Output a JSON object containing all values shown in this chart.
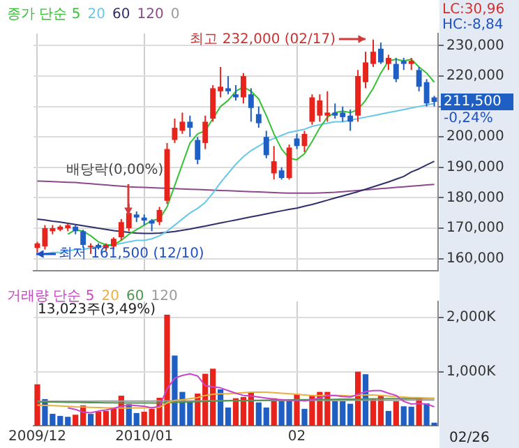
{
  "chart_data": [
    {
      "type": "candlestick",
      "legend_title": "종가 단순",
      "legend": "top left",
      "grid": true,
      "marker": "none",
      "tick_labels": "y",
      "categories": [
        "2009/12",
        null,
        null,
        null,
        null,
        null,
        null,
        null,
        null,
        null,
        null,
        null,
        null,
        null,
        "2010/01",
        null,
        null,
        null,
        null,
        null,
        null,
        null,
        null,
        null,
        null,
        null,
        null,
        null,
        null,
        null,
        null,
        null,
        null,
        null,
        "02",
        null,
        null,
        null,
        null,
        null,
        null,
        null,
        null,
        null,
        null,
        null,
        null,
        null,
        null,
        null,
        null,
        null,
        null
      ],
      "ylim": [
        156000,
        234000
      ],
      "yticks": [
        {
          "value": 160000,
          "label": "160,000"
        },
        {
          "value": 170000,
          "label": "170,000"
        },
        {
          "value": 180000,
          "label": "180,000"
        },
        {
          "value": 190000,
          "label": "190,000"
        },
        {
          "value": 200000,
          "label": "200,000"
        },
        {
          "value": 210000,
          "label": null
        },
        {
          "value": 220000,
          "label": "220,000"
        },
        {
          "value": 230000,
          "label": "230,000"
        }
      ],
      "ohlc": [
        [
          163500,
          165500,
          162000,
          165000
        ],
        [
          164000,
          171000,
          163000,
          170000
        ],
        [
          169000,
          171000,
          168000,
          170000
        ],
        [
          169500,
          171000,
          169000,
          170500
        ],
        [
          170000,
          171500,
          169000,
          171000
        ],
        [
          170500,
          171000,
          168000,
          169000
        ],
        [
          169000,
          169500,
          163500,
          164500
        ],
        [
          163800,
          165000,
          161500,
          164200
        ],
        [
          164500,
          165000,
          163000,
          163500
        ],
        [
          163500,
          165000,
          162500,
          164500
        ],
        [
          164000,
          167000,
          163000,
          166500
        ],
        [
          167000,
          173000,
          166000,
          172000
        ],
        [
          170000,
          178000,
          169000,
          175000
        ],
        [
          174500,
          175500,
          172000,
          173500
        ],
        [
          173500,
          174500,
          171000,
          172500
        ],
        [
          172500,
          173000,
          169000,
          171500
        ],
        [
          172000,
          177000,
          171000,
          176000
        ],
        [
          179000,
          198000,
          178000,
          196000
        ],
        [
          199000,
          206000,
          198000,
          203000
        ],
        [
          202000,
          208000,
          201000,
          205000
        ],
        [
          205000,
          207000,
          200000,
          203000
        ],
        [
          199000,
          200000,
          191000,
          192500
        ],
        [
          198000,
          207000,
          196000,
          205000
        ],
        [
          206000,
          217000,
          205000,
          216000
        ],
        [
          215000,
          223000,
          213000,
          216500
        ],
        [
          216000,
          220000,
          214000,
          215000
        ],
        [
          214000,
          217000,
          212000,
          213000
        ],
        [
          213000,
          221000,
          211000,
          220000
        ],
        [
          214000,
          216000,
          205000,
          209500
        ],
        [
          207500,
          210000,
          203000,
          204500
        ],
        [
          200000,
          202000,
          193000,
          194000
        ],
        [
          188000,
          197000,
          186000,
          192000
        ],
        [
          189000,
          190000,
          186000,
          186500
        ],
        [
          186500,
          197500,
          186000,
          196500
        ],
        [
          199500,
          201000,
          196000,
          197000
        ],
        [
          197000,
          202000,
          195000,
          201000
        ],
        [
          205000,
          214000,
          204000,
          213000
        ],
        [
          207000,
          214000,
          205000,
          212000
        ],
        [
          207000,
          215000,
          205000,
          208000
        ],
        [
          208000,
          211000,
          206000,
          207000
        ],
        [
          208000,
          210000,
          205000,
          206500
        ],
        [
          207000,
          209000,
          202000,
          205000
        ],
        [
          207000,
          222000,
          205000,
          220000
        ],
        [
          218000,
          228000,
          216000,
          224500
        ],
        [
          224000,
          232000,
          223000,
          228000
        ],
        [
          229000,
          231000,
          224000,
          224500
        ],
        [
          224000,
          227000,
          222000,
          226000
        ],
        [
          224000,
          226000,
          218000,
          219000
        ],
        [
          225000,
          226000,
          222000,
          224000
        ],
        [
          224000,
          226000,
          222000,
          225000
        ],
        [
          222000,
          223000,
          215000,
          216500
        ],
        [
          218000,
          219000,
          210000,
          211000
        ],
        [
          213000,
          213500,
          210000,
          211500
        ]
      ],
      "colors": [
        "#e8231c",
        "#e8231c",
        "#e8231c",
        "#e8231c",
        "#e8231c",
        "#1f5fc4",
        "#1f5fc4",
        "#e8231c",
        "#1f5fc4",
        "#e8231c",
        "#e8231c",
        "#e8231c",
        "#e8231c",
        "#1f5fc4",
        "#1f5fc4",
        "#1f5fc4",
        "#e8231c",
        "#e8231c",
        "#e8231c",
        "#e8231c",
        "#1f5fc4",
        "#1f5fc4",
        "#e8231c",
        "#e8231c",
        "#e8231c",
        "#1f5fc4",
        "#1f5fc4",
        "#e8231c",
        "#1f5fc4",
        "#1f5fc4",
        "#1f5fc4",
        "#e8231c",
        "#1f5fc4",
        "#e8231c",
        "#1f5fc4",
        "#e8231c",
        "#e8231c",
        "#e8231c",
        "#e8231c",
        "#1f5fc4",
        "#1f5fc4",
        "#1f5fc4",
        "#e8231c",
        "#e8231c",
        "#e8231c",
        "#1f5fc4",
        "#e8231c",
        "#1f5fc4",
        "#1f5fc4",
        "#e8231c",
        "#1f5fc4",
        "#1f5fc4",
        "#1f5fc4"
      ],
      "series": [
        {
          "type": "line",
          "name": "5",
          "color": "#33c233",
          "values": [
            null,
            null,
            null,
            null,
            168000,
            169500,
            169000,
            167500,
            165500,
            164500,
            164500,
            166000,
            168000,
            169500,
            171000,
            172500,
            173000,
            177000,
            184000,
            191000,
            198000,
            201000,
            202000,
            206000,
            210000,
            212000,
            215000,
            216500,
            215000,
            212500,
            207000,
            201000,
            196000,
            193000,
            192500,
            194500,
            198500,
            203000,
            206500,
            208000,
            208500,
            208000,
            209000,
            212000,
            216000,
            221000,
            225000,
            225500,
            225000,
            225500,
            223000,
            221000,
            218000
          ]
        },
        {
          "type": "line",
          "name": "20",
          "color": "#66c8e8",
          "values": [
            161500,
            161500,
            162000,
            162000,
            162500,
            163000,
            163000,
            163500,
            164000,
            164000,
            164500,
            165000,
            165500,
            166000,
            166000,
            166500,
            167500,
            169000,
            171000,
            173000,
            175000,
            176500,
            178500,
            181500,
            185000,
            188000,
            191000,
            193500,
            195500,
            197000,
            198500,
            199500,
            200500,
            201500,
            202000,
            202500,
            203500,
            204000,
            204500,
            205000,
            205000,
            205500,
            206000,
            206500,
            207000,
            207500,
            208000,
            208500,
            209000,
            209500,
            210000,
            210500,
            211000
          ]
        },
        {
          "type": "line",
          "name": "60",
          "color": "#2e2e6a",
          "values": [
            173000,
            172700,
            172300,
            172000,
            171600,
            171200,
            170800,
            170400,
            170000,
            169600,
            169200,
            168900,
            168600,
            168400,
            168300,
            168300,
            168400,
            168600,
            168900,
            169300,
            169700,
            170200,
            170700,
            171200,
            171700,
            172200,
            172700,
            173200,
            173700,
            174200,
            174700,
            175200,
            175700,
            176200,
            176600,
            177200,
            177800,
            178500,
            179200,
            179900,
            180600,
            181300,
            182000,
            182800,
            183600,
            184400,
            185200,
            186100,
            187000,
            188500,
            189500,
            190800,
            192000
          ]
        },
        {
          "type": "line",
          "name": "120",
          "color": "#8a4a8a",
          "values": [
            185500,
            185400,
            185300,
            185200,
            185100,
            185000,
            184800,
            184600,
            184400,
            184200,
            184000,
            183800,
            183600,
            183500,
            183400,
            183300,
            183200,
            183100,
            183000,
            182900,
            182800,
            182700,
            182600,
            182500,
            182400,
            182300,
            182200,
            182100,
            182000,
            181900,
            181800,
            181700,
            181600,
            181500,
            181500,
            181500,
            181500,
            181600,
            181700,
            181800,
            182000,
            182200,
            182400,
            182600,
            182800,
            183000,
            183200,
            183400,
            183600,
            183800,
            184000,
            184200,
            184400
          ]
        }
      ],
      "annotations": [
        "0",
        "최고 232,000 (02/17)",
        "최저 161,500 (12/10)",
        "배당락(0,00%)",
        "LC:30,96",
        "HC:-8,84",
        "211,500",
        "-0,24%"
      ]
    },
    {
      "type": "bar",
      "legend_title": "거래량 단순",
      "legend": "top left",
      "grid": true,
      "marker": "none",
      "categories": [
        "2009/12",
        null,
        null,
        null,
        null,
        null,
        null,
        null,
        null,
        null,
        null,
        null,
        null,
        null,
        "2010/01",
        null,
        null,
        null,
        null,
        null,
        null,
        null,
        null,
        null,
        null,
        null,
        null,
        null,
        null,
        null,
        null,
        null,
        null,
        null,
        "02",
        null,
        null,
        null,
        null,
        null,
        null,
        null,
        null,
        null,
        null,
        null,
        null,
        null,
        null,
        null,
        null,
        null,
        null
      ],
      "ylim": [
        0,
        2300
      ],
      "yticks": [
        {
          "value": 1000,
          "label": "1,000K"
        },
        {
          "value": 2000,
          "label": "2,000K"
        }
      ],
      "series": [
        {
          "type": "bar",
          "colors": [
            "#e8231c",
            "#1f5fc4",
            "#1f5fc4",
            "#1f5fc4",
            "#1f5fc4",
            "#e8231c",
            "#e8231c",
            "#1f5fc4",
            "#e8231c",
            "#e8231c",
            "#e8231c",
            "#e8231c",
            "#1f5fc4",
            "#1f5fc4",
            "#e8231c",
            "#e8231c",
            "#e8231c",
            "#e8231c",
            "#1f5fc4",
            "#1f5fc4",
            "#1f5fc4",
            "#e8231c",
            "#e8231c",
            "#e8231c",
            "#1f5fc4",
            "#1f5fc4",
            "#e8231c",
            "#e8231c",
            "#e8231c",
            "#1f5fc4",
            "#1f5fc4",
            "#e8231c",
            "#1f5fc4",
            "#1f5fc4",
            "#e8231c",
            "#1f5fc4",
            "#e8231c",
            "#e8231c",
            "#e8231c",
            "#1f5fc4",
            "#1f5fc4",
            "#1f5fc4",
            "#e8231c",
            "#1f5fc4",
            "#e8231c",
            "#e8231c",
            "#1f5fc4",
            "#e8231c",
            "#1f5fc4",
            "#1f5fc4",
            "#e8231c",
            "#1f5fc4",
            "#1f5fc4"
          ],
          "values": [
            766,
            492,
            219,
            180,
            164,
            203,
            375,
            219,
            258,
            273,
            336,
            555,
            398,
            234,
            258,
            312,
            516,
            2055,
            1297,
            625,
            453,
            594,
            961,
            1055,
            672,
            336,
            508,
            531,
            609,
            430,
            336,
            508,
            469,
            453,
            586,
            312,
            563,
            625,
            625,
            453,
            453,
            406,
            1000,
            953,
            492,
            555,
            273,
            453,
            359,
            352,
            516,
            414,
            55
          ]
        },
        {
          "type": "line",
          "name": "5",
          "color": "#c844c8",
          "values": [
            null,
            null,
            null,
            null,
            330,
            300,
            250,
            240,
            270,
            290,
            320,
            360,
            380,
            370,
            360,
            330,
            360,
            680,
            880,
            930,
            960,
            920,
            740,
            720,
            700,
            650,
            600,
            560,
            550,
            530,
            510,
            490,
            480,
            470,
            470,
            460,
            480,
            510,
            560,
            560,
            540,
            530,
            580,
            630,
            650,
            650,
            600,
            560,
            450,
            400,
            410,
            400,
            350
          ]
        },
        {
          "type": "line",
          "name": "20",
          "color": "#e8b040",
          "values": [
            380,
            375,
            370,
            365,
            360,
            350,
            345,
            340,
            335,
            330,
            330,
            325,
            325,
            330,
            330,
            335,
            340,
            420,
            470,
            480,
            500,
            520,
            560,
            580,
            590,
            590,
            600,
            610,
            620,
            620,
            620,
            610,
            600,
            590,
            580,
            570,
            560,
            560,
            560,
            560,
            560,
            550,
            560,
            570,
            570,
            560,
            550,
            540,
            530,
            520,
            520,
            510,
            500
          ]
        },
        {
          "type": "line",
          "name": "60",
          "color": "#4f944f",
          "values": [
            440,
            440,
            438,
            436,
            434,
            432,
            430,
            428,
            426,
            424,
            422,
            420,
            420,
            420,
            420,
            420,
            420,
            425,
            430,
            435,
            440,
            445,
            450,
            455,
            460,
            462,
            464,
            466,
            468,
            470,
            472,
            474,
            476,
            478,
            480,
            480,
            482,
            484,
            486,
            488,
            490,
            490,
            492,
            494,
            496,
            498,
            500,
            500,
            502,
            504,
            504,
            506,
            508
          ]
        },
        {
          "type": "line",
          "name": "120",
          "color": "#9a9a9a",
          "values": [
            450,
            450,
            451,
            451,
            452,
            452,
            453,
            453,
            454,
            454,
            455,
            455,
            456,
            456,
            457,
            457,
            458,
            458,
            459,
            459,
            460,
            460,
            461,
            461,
            462,
            462,
            463,
            463,
            464,
            464,
            465,
            465,
            466,
            466,
            467,
            467,
            468,
            468,
            469,
            469,
            470,
            470,
            471,
            471,
            472,
            472,
            473,
            473,
            474,
            474,
            475,
            475,
            476
          ]
        }
      ],
      "annotations": [
        "13,023주(3,49%)",
        "02/26"
      ]
    }
  ]
}
